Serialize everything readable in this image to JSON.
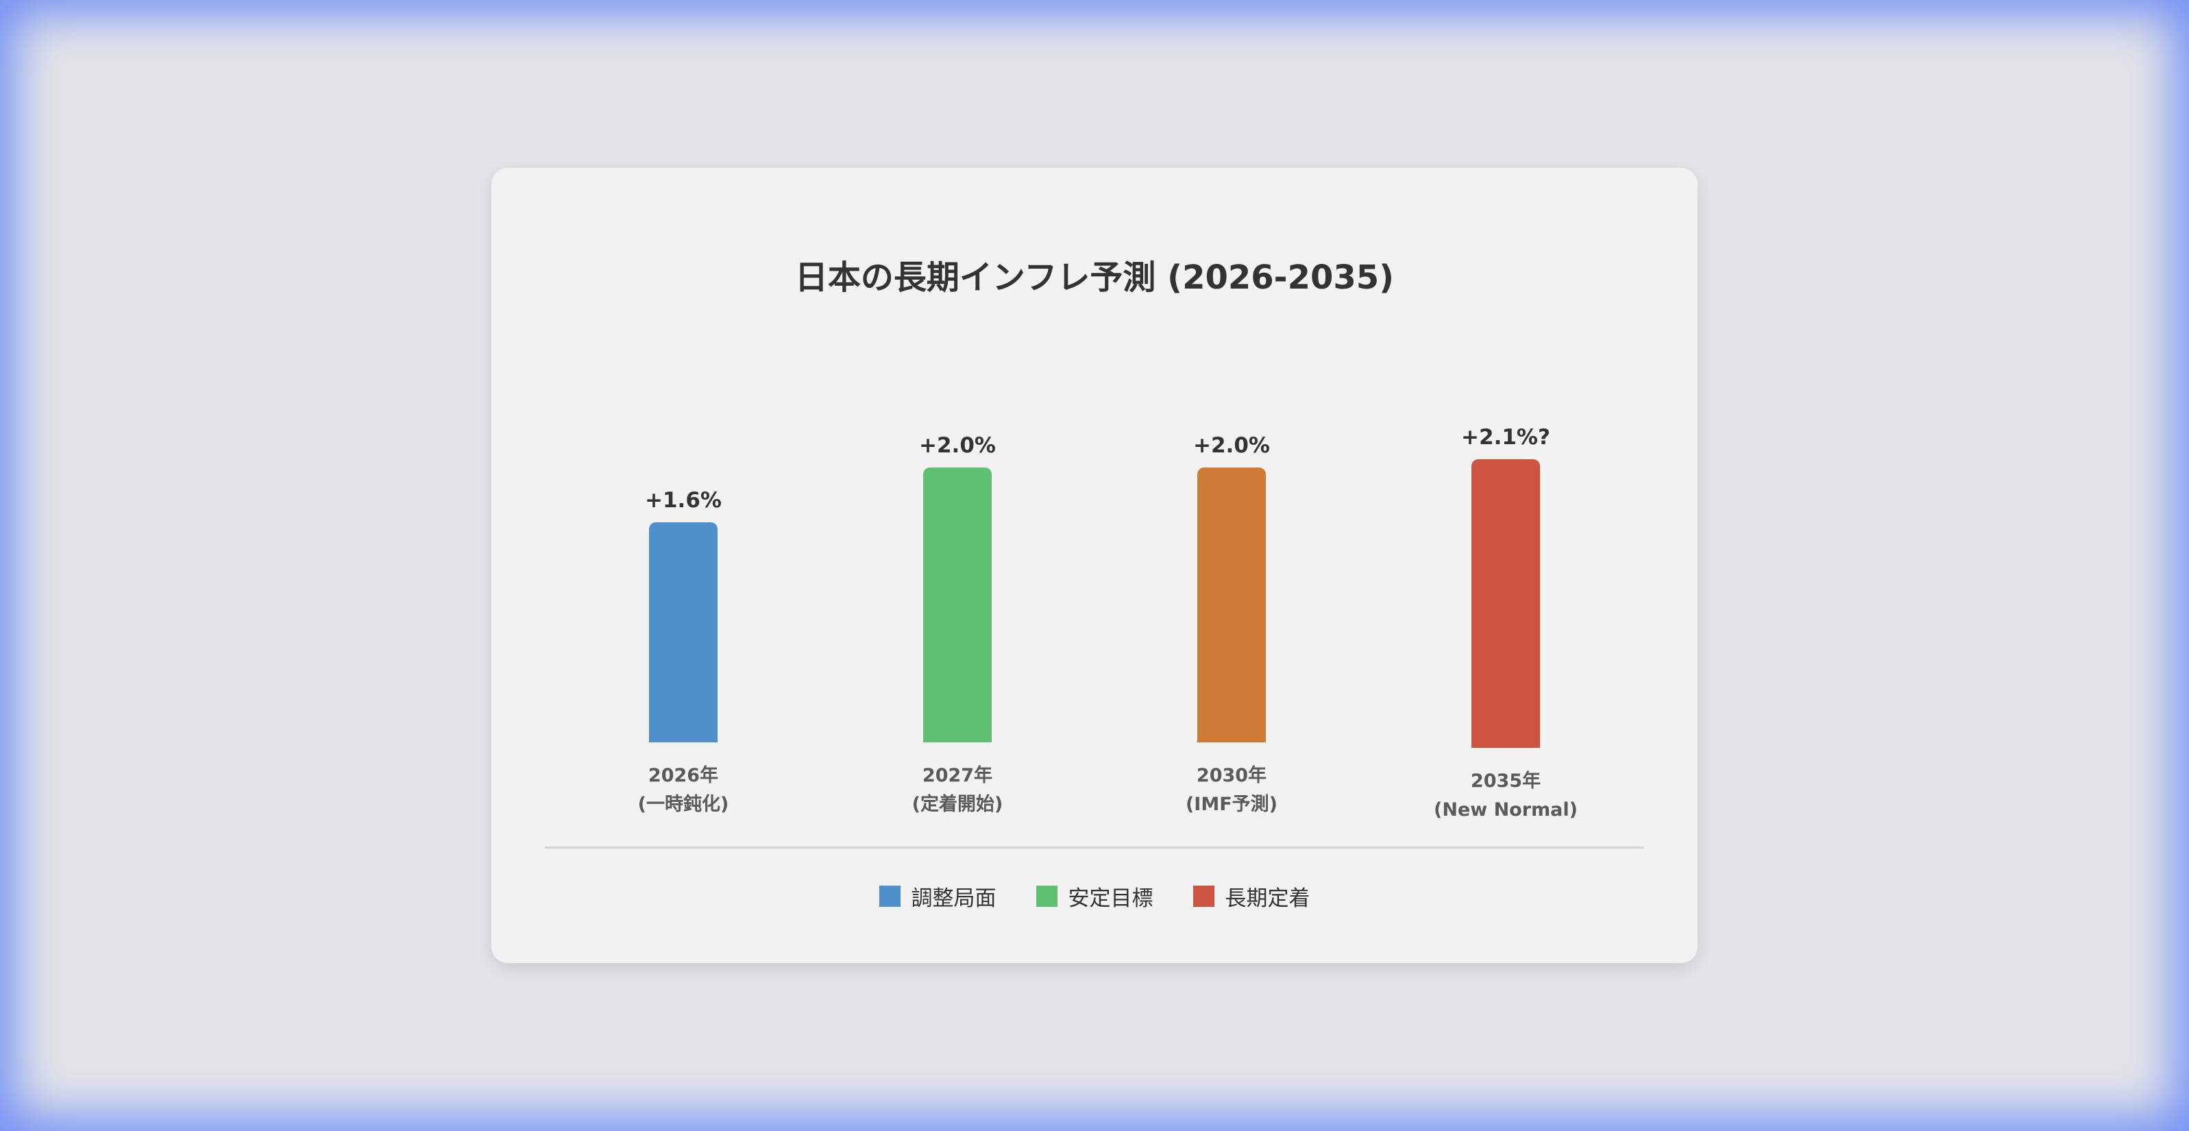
{
  "chart_data": {
    "type": "bar",
    "title": "日本の長期インフレ予測 (2026-2035)",
    "categories": [
      "2026年 (一時鈍化)",
      "2027年 (定着開始)",
      "2030年 (IMF予測)",
      "2035年 (New Normal)"
    ],
    "category_lines": [
      [
        "2026年",
        "(一時鈍化)"
      ],
      [
        "2027年",
        "(定着開始)"
      ],
      [
        "2030年",
        "(IMF予測)"
      ],
      [
        "2035年",
        "(New Normal)"
      ]
    ],
    "values": [
      1.6,
      2.0,
      2.0,
      2.1
    ],
    "value_labels": [
      "+1.6%",
      "+2.0%",
      "+2.0%",
      "+2.1%?"
    ],
    "bar_colors": [
      "#4e8fcc",
      "#5fbf73",
      "#cd7b36",
      "#cc5441"
    ],
    "ylim": [
      0,
      2.1
    ],
    "grid": false,
    "legend_position": "bottom-center",
    "legend": [
      {
        "label": "調整局面",
        "color": "#4e8fcc"
      },
      {
        "label": "安定目標",
        "color": "#5fbf73"
      },
      {
        "label": "長期定着",
        "color": "#cc5441"
      }
    ]
  }
}
